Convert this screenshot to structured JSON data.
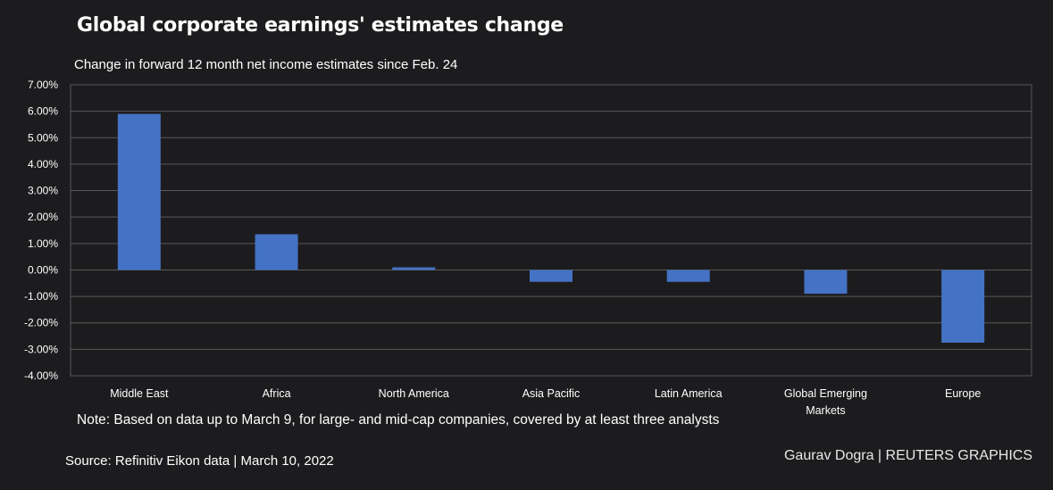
{
  "title": "Global corporate earnings' estimates change",
  "subtitle": "Change in forward 12 month net income estimates since Feb. 24",
  "note": "Note: Based on data up to March 9, for large- and mid-cap companies, covered by at least three analysts",
  "source": "Source: Refinitiv Eikon data | March 10, 2022",
  "credit": "Gaurav Dogra | REUTERS GRAPHICS",
  "colors": {
    "background": "#1c1c1e",
    "bar": "#4472c4",
    "grid": "#595959",
    "text": "#ffffff"
  },
  "chart_data": {
    "type": "bar",
    "title": "Global corporate earnings' estimates change",
    "subtitle": "Change in forward 12 month net income estimates since Feb. 24",
    "xlabel": "",
    "ylabel": "",
    "categories": [
      [
        "Middle East"
      ],
      [
        "Africa"
      ],
      [
        "North America"
      ],
      [
        "Asia Pacific"
      ],
      [
        "Latin America"
      ],
      [
        "Global Emerging",
        "Markets"
      ],
      [
        "Europe"
      ]
    ],
    "values": [
      5.9,
      1.35,
      0.1,
      -0.45,
      -0.45,
      -0.9,
      -2.75
    ],
    "ylim": [
      -4,
      7
    ],
    "yticks": [
      7,
      6,
      5,
      4,
      3,
      2,
      1,
      0,
      -1,
      -2,
      -3,
      -4
    ],
    "ytick_labels": [
      "7.00%",
      "6.00%",
      "5.00%",
      "4.00%",
      "3.00%",
      "2.00%",
      "1.00%",
      "0.00%",
      "-1.00%",
      "-2.00%",
      "-3.00%",
      "-4.00%"
    ],
    "grid": true,
    "legend": "none"
  }
}
